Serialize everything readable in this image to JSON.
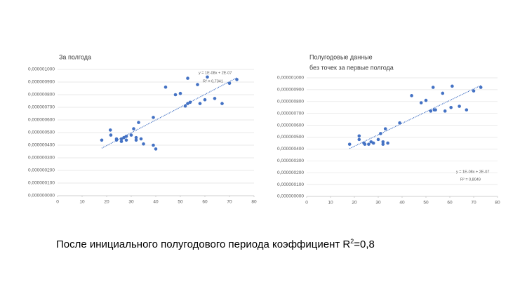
{
  "chart_data": [
    {
      "type": "scatter",
      "title": "За полгода",
      "x": [
        18,
        21.5,
        21.7,
        24,
        24,
        26,
        26,
        27,
        28,
        28,
        30,
        31,
        32,
        32,
        33,
        34,
        35,
        39,
        39,
        40,
        44,
        48,
        50,
        52,
        53,
        53,
        54,
        57,
        58,
        60,
        61,
        64,
        67,
        70,
        73
      ],
      "values": [
        4.4e-07,
        5.2e-07,
        4.8e-07,
        4.5e-07,
        4.4e-07,
        4.5e-07,
        4.3e-07,
        4.6e-07,
        4.7e-07,
        4.4e-07,
        4.8e-07,
        5.3e-07,
        4.6e-07,
        4.4e-07,
        5.8e-07,
        4.5e-07,
        4.1e-07,
        6.2e-07,
        4e-07,
        3.7e-07,
        8.6e-07,
        8e-07,
        8.1e-07,
        7.1e-07,
        9.3e-07,
        7.3e-07,
        7.4e-07,
        8.8e-07,
        7.3e-07,
        7.6e-07,
        9.4e-07,
        7.7e-07,
        7.3e-07,
        8.9e-07,
        9.2e-07
      ],
      "color": "#4472c4",
      "xlim": [
        0,
        80
      ],
      "xticks": [
        0,
        10,
        20,
        30,
        40,
        50,
        60,
        70,
        80
      ],
      "ylim": [
        0,
        1e-06
      ],
      "yticks": [
        {
          "value": 0,
          "label": "0,000000000"
        },
        {
          "value": 1e-07,
          "label": "0,000000100"
        },
        {
          "value": 2e-07,
          "label": "0,000000200"
        },
        {
          "value": 3e-07,
          "label": "0,000000300"
        },
        {
          "value": 4e-07,
          "label": "0,000000400"
        },
        {
          "value": 5e-07,
          "label": "0,000000500"
        },
        {
          "value": 6e-07,
          "label": "0,000000600"
        },
        {
          "value": 7e-07,
          "label": "0,000000700"
        },
        {
          "value": 8e-07,
          "label": "0,000000800"
        },
        {
          "value": 9e-07,
          "label": "0,000000900"
        },
        {
          "value": 1e-06,
          "label": "0,000001000"
        }
      ],
      "grid": true,
      "trendline": true,
      "annotations": [
        "y = 1E-08x + 2E-07",
        "R² = 0,7341"
      ]
    },
    {
      "type": "scatter",
      "title": "Полугодовые данные",
      "subtitle": "без точек за первые  полгода",
      "x": [
        18,
        22,
        22,
        24,
        24.4,
        26,
        27,
        28,
        30,
        31,
        32,
        32,
        33,
        34,
        39,
        44,
        48,
        50,
        52,
        53,
        53.5,
        54,
        57,
        58,
        60.5,
        61,
        64,
        67,
        70,
        73
      ],
      "values": [
        4.4e-07,
        5.1e-07,
        4.8e-07,
        4.5e-07,
        4.4e-07,
        4.4e-07,
        4.6e-07,
        4.5e-07,
        4.8e-07,
        5.3e-07,
        4.6e-07,
        4.4e-07,
        5.7e-07,
        4.5e-07,
        6.2e-07,
        8.5e-07,
        7.9e-07,
        8.1e-07,
        7.2e-07,
        9.2e-07,
        7.3e-07,
        7.3e-07,
        8.7e-07,
        7.2e-07,
        7.5e-07,
        9.3e-07,
        7.6e-07,
        7.3e-07,
        8.9e-07,
        9.2e-07
      ],
      "color": "#4472c4",
      "xlim": [
        0,
        80
      ],
      "xticks": [
        0,
        10,
        20,
        30,
        40,
        50,
        60,
        70,
        80
      ],
      "ylim": [
        0,
        1e-06
      ],
      "yticks": [
        {
          "value": 0,
          "label": "0,000000000"
        },
        {
          "value": 1e-07,
          "label": "0,000000100"
        },
        {
          "value": 2e-07,
          "label": "0,000000200"
        },
        {
          "value": 3e-07,
          "label": "0,000000300"
        },
        {
          "value": 4e-07,
          "label": "0,000000400"
        },
        {
          "value": 5e-07,
          "label": "0,000000500"
        },
        {
          "value": 6e-07,
          "label": "0,000000600"
        },
        {
          "value": 7e-07,
          "label": "0,000000700"
        },
        {
          "value": 8e-07,
          "label": "0,000000800"
        },
        {
          "value": 9e-07,
          "label": "0,000000900"
        },
        {
          "value": 1e-06,
          "label": "0,000001000"
        }
      ],
      "grid": true,
      "trendline": true,
      "annotations": [
        "y = 1E-08x + 2E-07",
        "R² = 0,8049"
      ]
    }
  ],
  "caption": {
    "text": "После инициального полугодового периода коэффициент R",
    "sup": "2",
    "tail": "=0,8"
  }
}
